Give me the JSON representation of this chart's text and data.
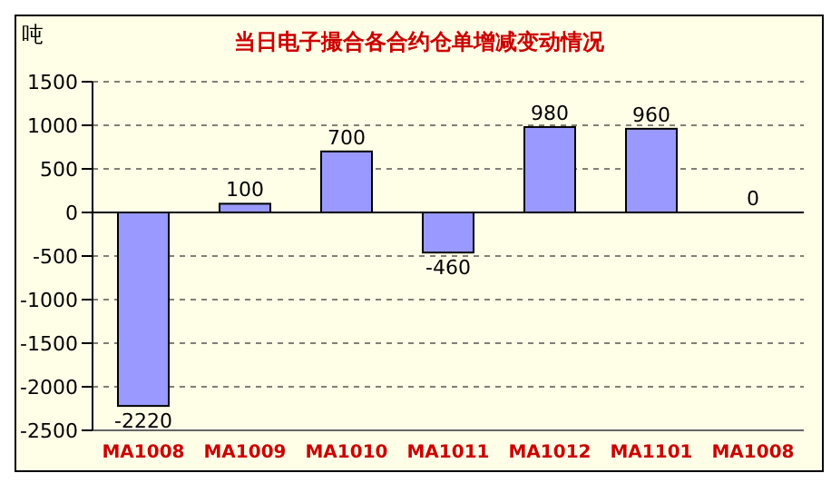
{
  "chart_data": {
    "type": "bar",
    "title": "当日电子撮合各合约仓单增减变动情况",
    "ylabel": "吨",
    "categories": [
      "MA1008",
      "MA1009",
      "MA1010",
      "MA1011",
      "MA1012",
      "MA1101",
      "MA1008"
    ],
    "values": [
      -2220,
      100,
      700,
      -460,
      980,
      960,
      0
    ],
    "color": "#9999ff",
    "ylim": [
      -2500,
      1500
    ],
    "yticks": [
      -2500,
      -2000,
      -1500,
      -1000,
      -500,
      0,
      500,
      1000,
      1500
    ],
    "grid": "y",
    "data_labels": true
  }
}
